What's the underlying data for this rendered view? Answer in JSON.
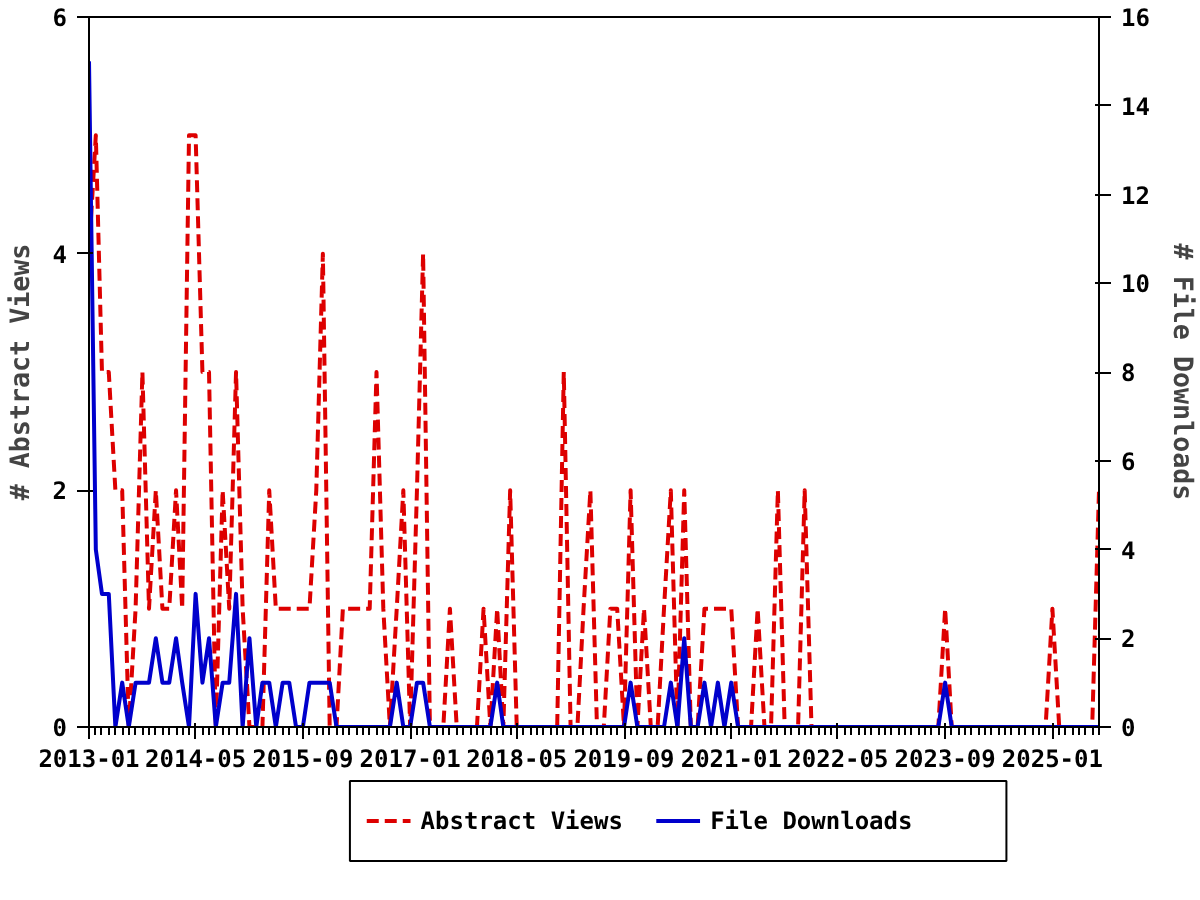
{
  "chart_data": {
    "type": "line",
    "xlabel": null,
    "ylabel": "# Abstract Views",
    "y2label": "# File Downloads",
    "x": [
      "2013-01",
      "2013-02",
      "2013-03",
      "2013-04",
      "2013-05",
      "2013-06",
      "2013-07",
      "2013-08",
      "2013-09",
      "2013-10",
      "2013-11",
      "2013-12",
      "2014-01",
      "2014-02",
      "2014-03",
      "2014-04",
      "2014-05",
      "2014-06",
      "2014-07",
      "2014-08",
      "2014-09",
      "2014-10",
      "2014-11",
      "2014-12",
      "2015-01",
      "2015-02",
      "2015-03",
      "2015-04",
      "2015-05",
      "2015-06",
      "2015-07",
      "2015-08",
      "2015-09",
      "2015-10",
      "2015-11",
      "2015-12",
      "2016-01",
      "2016-02",
      "2016-03",
      "2016-04",
      "2016-05",
      "2016-06",
      "2016-07",
      "2016-08",
      "2016-09",
      "2016-10",
      "2016-11",
      "2016-12",
      "2017-01",
      "2017-02",
      "2017-03",
      "2017-04",
      "2017-05",
      "2017-06",
      "2017-07",
      "2017-08",
      "2017-09",
      "2017-10",
      "2017-11",
      "2017-12",
      "2018-01",
      "2018-02",
      "2018-03",
      "2018-04",
      "2018-05",
      "2018-06",
      "2018-07",
      "2018-08",
      "2018-09",
      "2018-10",
      "2018-11",
      "2018-12",
      "2019-01",
      "2019-02",
      "2019-03",
      "2019-04",
      "2019-05",
      "2019-06",
      "2019-07",
      "2019-08",
      "2019-09",
      "2019-10",
      "2019-11",
      "2019-12",
      "2020-01",
      "2020-02",
      "2020-03",
      "2020-04",
      "2020-05",
      "2020-06",
      "2020-07",
      "2020-08",
      "2020-09",
      "2020-10",
      "2020-11",
      "2020-12",
      "2021-01",
      "2021-02",
      "2021-03",
      "2021-04",
      "2021-05",
      "2021-06",
      "2021-07",
      "2021-08",
      "2021-09",
      "2021-10",
      "2021-11",
      "2021-12",
      "2022-01",
      "2022-02",
      "2022-03",
      "2022-04",
      "2022-05",
      "2022-06",
      "2022-07",
      "2022-08",
      "2022-09",
      "2022-10",
      "2022-11",
      "2022-12",
      "2023-01",
      "2023-02",
      "2023-03",
      "2023-04",
      "2023-05",
      "2023-06",
      "2023-07",
      "2023-08",
      "2023-09",
      "2023-10",
      "2023-11",
      "2023-12",
      "2024-01",
      "2024-02",
      "2024-03",
      "2024-04",
      "2024-05",
      "2024-06",
      "2024-07",
      "2024-08",
      "2024-09",
      "2024-10",
      "2024-11",
      "2024-12",
      "2025-01",
      "2025-02",
      "2025-03",
      "2025-04",
      "2025-05",
      "2025-06",
      "2025-07",
      "2025-08"
    ],
    "series": [
      {
        "name": "Abstract Views",
        "color": "#dd0000",
        "line_style": "dashed",
        "values": [
          4,
          5,
          3,
          3,
          2,
          2,
          0,
          1,
          3,
          1,
          2,
          1,
          1,
          2,
          1,
          5,
          5,
          3,
          3,
          0,
          2,
          1,
          3,
          1,
          0,
          0,
          0,
          2,
          1,
          1,
          1,
          1,
          1,
          1,
          2,
          4,
          0,
          0,
          1,
          1,
          1,
          1,
          1,
          3,
          1,
          0,
          1,
          2,
          0,
          2,
          4,
          0,
          0,
          0,
          1,
          0,
          0,
          0,
          0,
          1,
          0,
          1,
          0,
          2,
          0,
          0,
          0,
          0,
          0,
          0,
          0,
          3,
          0,
          0,
          1,
          2,
          0,
          0,
          1,
          1,
          0,
          2,
          0,
          1,
          0,
          0,
          1,
          2,
          0,
          2,
          0,
          0,
          1,
          1,
          1,
          1,
          1,
          0,
          0,
          0,
          1,
          0,
          0,
          2,
          0,
          0,
          0,
          2,
          0,
          0,
          0,
          0,
          0,
          0,
          0,
          0,
          0,
          0,
          0,
          0,
          0,
          0,
          0,
          0,
          0,
          0,
          0,
          0,
          1,
          0,
          0,
          0,
          0,
          0,
          0,
          0,
          0,
          0,
          0,
          0,
          0,
          0,
          0,
          0,
          1,
          0,
          0,
          0,
          0,
          0,
          0,
          2
        ]
      },
      {
        "name": "File Downloads",
        "color": "#0000cc",
        "axis": "y2",
        "line_style": "solid",
        "values": [
          15,
          4,
          3,
          3,
          0,
          1,
          0,
          1,
          1,
          1,
          2,
          1,
          1,
          2,
          1,
          0,
          3,
          1,
          2,
          0,
          1,
          1,
          3,
          0,
          2,
          0,
          1,
          1,
          0,
          1,
          1,
          0,
          0,
          1,
          1,
          1,
          1,
          0,
          0,
          0,
          0,
          0,
          0,
          0,
          0,
          0,
          1,
          0,
          0,
          1,
          1,
          0,
          0,
          0,
          0,
          0,
          0,
          0,
          0,
          0,
          0,
          1,
          0,
          0,
          0,
          0,
          0,
          0,
          0,
          0,
          0,
          0,
          0,
          0,
          0,
          0,
          0,
          0,
          0,
          0,
          0,
          1,
          0,
          0,
          0,
          0,
          0,
          1,
          0,
          2,
          0,
          0,
          1,
          0,
          1,
          0,
          1,
          0,
          0,
          0,
          0,
          0,
          0,
          0,
          0,
          0,
          0,
          0,
          0,
          0,
          0,
          0,
          0,
          0,
          0,
          0,
          0,
          0,
          0,
          0,
          0,
          0,
          0,
          0,
          0,
          0,
          0,
          0,
          1,
          0,
          0,
          0,
          0,
          0,
          0,
          0,
          0,
          0,
          0,
          0,
          0,
          0,
          0,
          0,
          0,
          0,
          0,
          0,
          0,
          0,
          0,
          0
        ]
      }
    ],
    "xlim": [
      "2013-01",
      "2025-08"
    ],
    "xticks": [
      "2013-01",
      "2014-05",
      "2015-09",
      "2017-01",
      "2018-05",
      "2019-09",
      "2021-01",
      "2022-05",
      "2023-09",
      "2025-01"
    ],
    "ylim": [
      0,
      6
    ],
    "yticks": [
      0,
      2,
      4,
      6
    ],
    "y2lim": [
      0,
      16
    ],
    "y2ticks": [
      0,
      2,
      4,
      6,
      8,
      10,
      12,
      14,
      16
    ],
    "grid": false,
    "legend": "bottom",
    "marker": "none"
  }
}
